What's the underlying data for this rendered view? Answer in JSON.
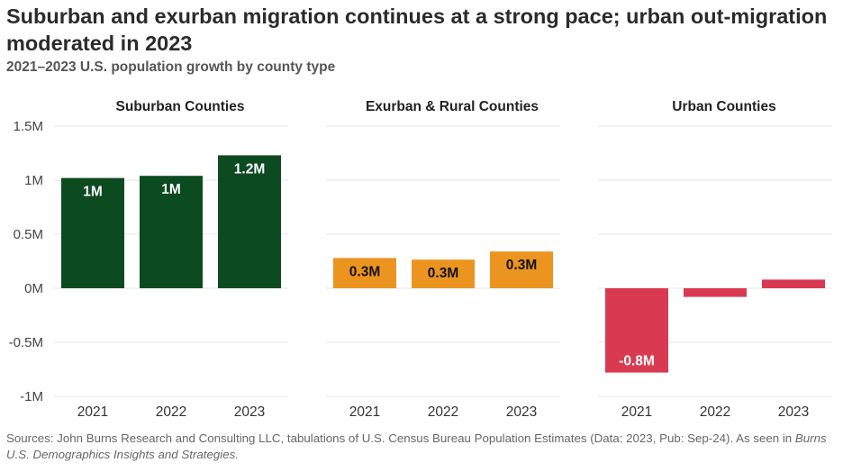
{
  "title": "Suburban and exurban migration continues at a strong pace; urban out-migration moderated in 2023",
  "subtitle": "2021–2023 U.S. population growth by county type",
  "source_text": "Sources: John Burns Research and Consulting LLC, tabulations of U.S. Census Bureau Population Estimates (Data: 2023, Pub: Sep-24). As seen in ",
  "source_italic": "Burns U.S. Demographics Insights and Strategies.",
  "chart_data": {
    "type": "bar",
    "ylim": [
      -1000000,
      1500000
    ],
    "y_ticks": [
      {
        "value": 1500000,
        "label": "1.5M"
      },
      {
        "value": 1000000,
        "label": "1M"
      },
      {
        "value": 500000,
        "label": "0.5M"
      },
      {
        "value": 0,
        "label": "0M"
      },
      {
        "value": -500000,
        "label": "-0.5M"
      },
      {
        "value": -1000000,
        "label": "-1M"
      }
    ],
    "grid": true,
    "categories": [
      "2021",
      "2022",
      "2023"
    ],
    "panels": [
      {
        "title": "Suburban Counties",
        "color": "#0c4a1f",
        "label_color": "#ffffff",
        "values": [
          1020000,
          1040000,
          1230000
        ],
        "labels": [
          "1M",
          "1M",
          "1.2M"
        ]
      },
      {
        "title": "Exurban & Rural Counties",
        "color": "#ec9420",
        "label_color": "#111111",
        "values": [
          280000,
          265000,
          340000
        ],
        "labels": [
          "0.3M",
          "0.3M",
          "0.3M"
        ]
      },
      {
        "title": "Urban Counties",
        "color": "#d93a52",
        "label_color": "#ffffff",
        "values": [
          -780000,
          -80000,
          80000
        ],
        "labels": [
          "-0.8M",
          "",
          ""
        ]
      }
    ]
  }
}
